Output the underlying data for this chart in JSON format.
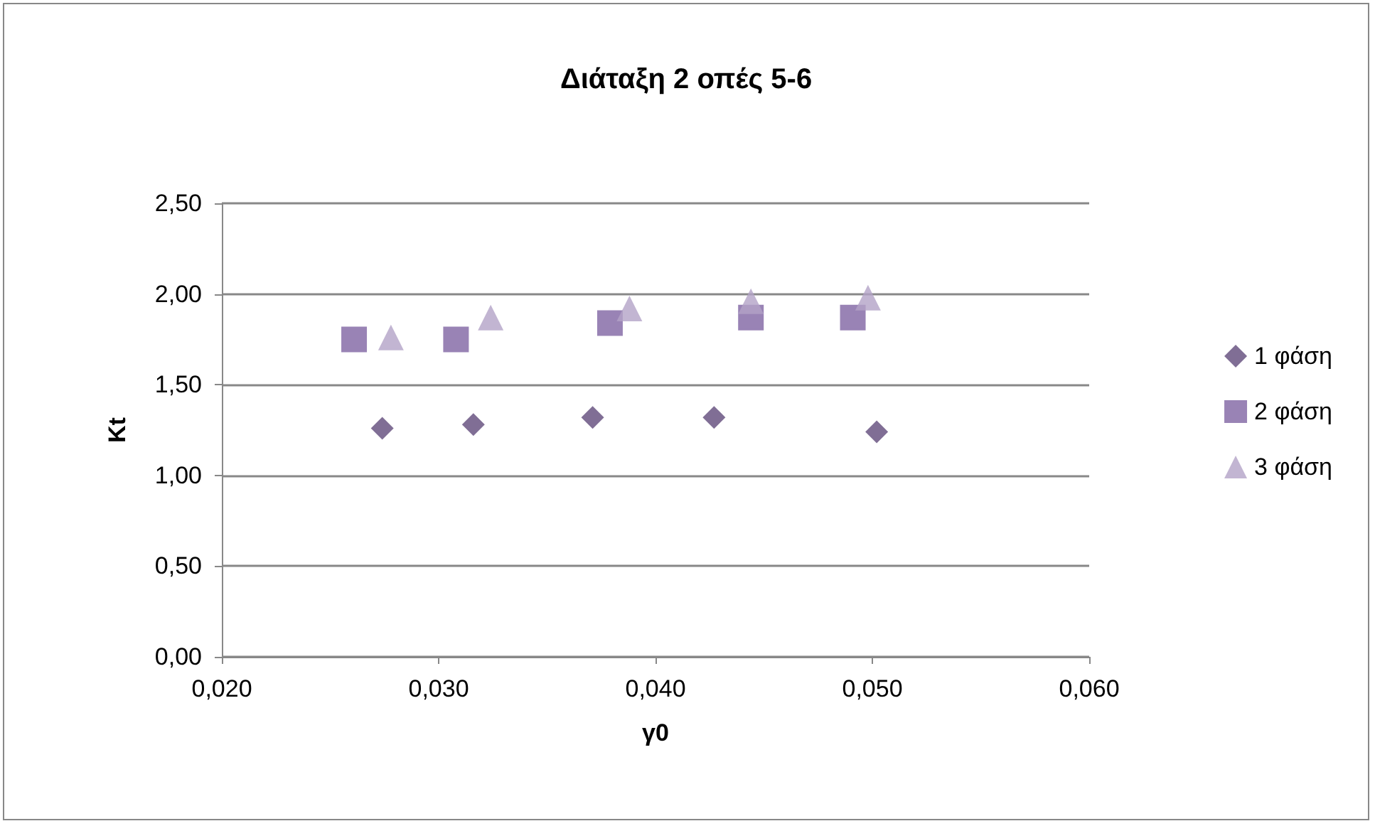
{
  "chart_data": {
    "type": "scatter",
    "title": "Διάταξη 2 οπές 5-6",
    "xlabel": "γ0",
    "ylabel": "Kt",
    "xlim": [
      0.02,
      0.06
    ],
    "xticks": [
      {
        "value": 0.02,
        "label": "0,020"
      },
      {
        "value": 0.03,
        "label": "0,030"
      },
      {
        "value": 0.04,
        "label": "0,040"
      },
      {
        "value": 0.05,
        "label": "0,050"
      },
      {
        "value": 0.06,
        "label": "0,060"
      }
    ],
    "ylim": [
      0,
      2.5
    ],
    "yticks": [
      {
        "value": 0,
        "label": "0,00"
      },
      {
        "value": 0.5,
        "label": "0,50"
      },
      {
        "value": 1,
        "label": "1,00"
      },
      {
        "value": 1.5,
        "label": "1,50"
      },
      {
        "value": 2,
        "label": "2,00"
      },
      {
        "value": 2.5,
        "label": "2,50"
      }
    ],
    "grid": "y",
    "legend": "right",
    "series": [
      {
        "name": "1 φάση",
        "color": "#604a7b",
        "marker": "diamond",
        "x": [
          0.0274,
          0.0316,
          0.0371,
          0.0427,
          0.0502
        ],
        "values": [
          1.26,
          1.28,
          1.32,
          1.32,
          1.24
        ]
      },
      {
        "name": "2 φάση",
        "color": "#8064a2",
        "marker": "square",
        "x": [
          0.0261,
          0.0308,
          0.0379,
          0.0444,
          0.0491
        ],
        "values": [
          1.75,
          1.75,
          1.84,
          1.87,
          1.87
        ]
      },
      {
        "name": "3 φάση",
        "color": "#b3a2c7",
        "marker": "triangle",
        "x": [
          0.0278,
          0.0324,
          0.0388,
          0.0444,
          0.0498
        ],
        "values": [
          1.76,
          1.87,
          1.92,
          1.96,
          1.98
        ]
      }
    ]
  }
}
